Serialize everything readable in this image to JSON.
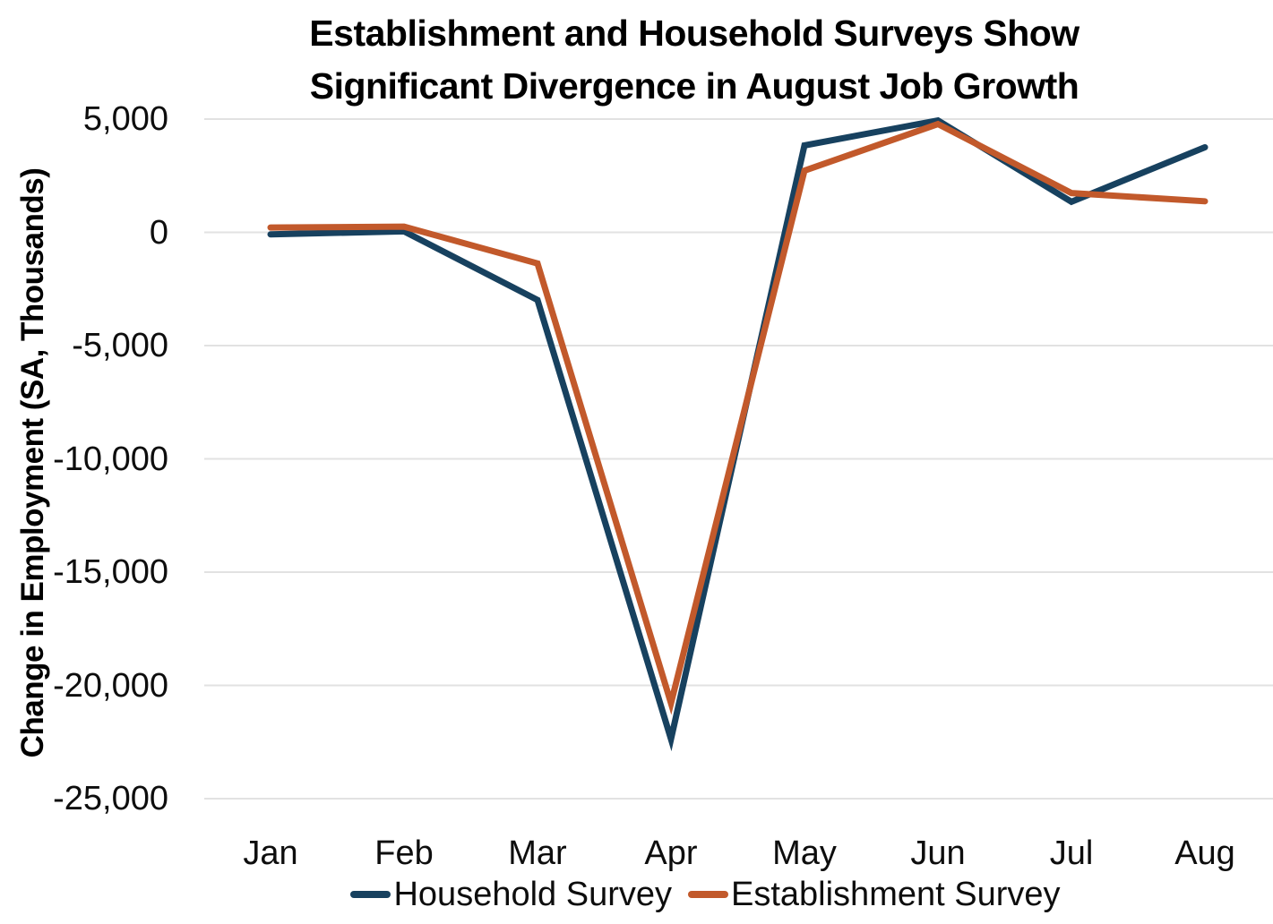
{
  "title_lines": [
    "Establishment and Household Surveys Show",
    "Significant Divergence in August Job Growth"
  ],
  "chart_data": {
    "type": "line",
    "title": "Establishment and Household Surveys Show Significant Divergence in August Job Growth",
    "ylabel": "Change in Employment (SA, Thousands)",
    "xlabel": "",
    "categories": [
      "Jan",
      "Feb",
      "Mar",
      "Apr",
      "May",
      "Jun",
      "Jul",
      "Aug"
    ],
    "series": [
      {
        "name": "Household Survey",
        "color": "#17415f",
        "values": [
          -89,
          45,
          -2987,
          -22369,
          3839,
          4940,
          1350,
          3756
        ]
      },
      {
        "name": "Establishment Survey",
        "color": "#c2592b",
        "values": [
          214,
          251,
          -1373,
          -20787,
          2725,
          4781,
          1734,
          1371
        ]
      }
    ],
    "ylim": [
      -25000,
      5000
    ],
    "yticks": [
      5000,
      0,
      -5000,
      -10000,
      -15000,
      -20000,
      -25000
    ],
    "yticklabels": [
      "5,000",
      "0",
      "-5,000",
      "-10,000",
      "-15,000",
      "-20,000",
      "-25,000"
    ],
    "grid": true,
    "gridline_color": "#e2e2e2",
    "background_color": "#ffffff",
    "legend_position": "bottom"
  }
}
